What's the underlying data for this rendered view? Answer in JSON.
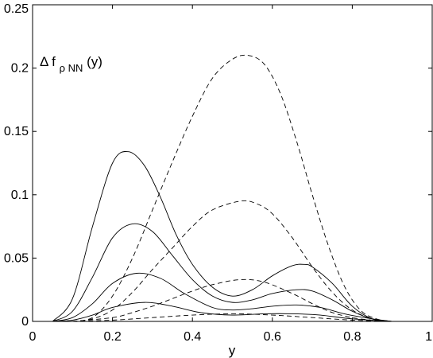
{
  "chart_data": {
    "type": "line",
    "xlabel": "y",
    "ylabel": "",
    "xlim": [
      0,
      1
    ],
    "ylim": [
      0,
      0.25
    ],
    "grid": false,
    "xticks": [
      "0",
      "0.2",
      "0.4",
      "0.6",
      "0.8",
      "1"
    ],
    "yticks": [
      "0",
      "0.05",
      "0.1",
      "0.15",
      "0.2",
      "0.25"
    ],
    "xtick_values": [
      0,
      0.2,
      0.4,
      0.6,
      0.8,
      1.0
    ],
    "ytick_values": [
      0,
      0.05,
      0.1,
      0.15,
      0.2,
      0.25
    ],
    "annotation": {
      "prefix": "Δ f",
      "subscript": "ρ NN",
      "suffix": "(y)"
    },
    "series": [
      {
        "style": "solid",
        "x": [
          0.05,
          0.1,
          0.15,
          0.2,
          0.24,
          0.28,
          0.32,
          0.36,
          0.4,
          0.45,
          0.5,
          0.55,
          0.6,
          0.65,
          0.68,
          0.7,
          0.75,
          0.8,
          0.85,
          0.9
        ],
        "y": [
          0.0,
          0.018,
          0.075,
          0.125,
          0.134,
          0.123,
          0.098,
          0.068,
          0.045,
          0.027,
          0.02,
          0.025,
          0.036,
          0.044,
          0.045,
          0.043,
          0.03,
          0.012,
          0.002,
          0.0
        ]
      },
      {
        "style": "solid",
        "x": [
          0.05,
          0.1,
          0.15,
          0.2,
          0.25,
          0.3,
          0.35,
          0.4,
          0.45,
          0.5,
          0.55,
          0.6,
          0.66,
          0.7,
          0.75,
          0.8,
          0.85,
          0.9
        ],
        "y": [
          0.0,
          0.008,
          0.035,
          0.066,
          0.077,
          0.071,
          0.052,
          0.033,
          0.02,
          0.015,
          0.017,
          0.022,
          0.025,
          0.024,
          0.017,
          0.008,
          0.002,
          0.0
        ]
      },
      {
        "style": "solid",
        "x": [
          0.05,
          0.1,
          0.15,
          0.2,
          0.26,
          0.32,
          0.38,
          0.45,
          0.5,
          0.55,
          0.6,
          0.66,
          0.72,
          0.78,
          0.85,
          0.9
        ],
        "y": [
          0.0,
          0.003,
          0.014,
          0.03,
          0.038,
          0.034,
          0.022,
          0.011,
          0.009,
          0.01,
          0.012,
          0.013,
          0.011,
          0.006,
          0.002,
          0.0
        ]
      },
      {
        "style": "solid",
        "x": [
          0.05,
          0.1,
          0.15,
          0.2,
          0.28,
          0.35,
          0.42,
          0.5,
          0.58,
          0.65,
          0.72,
          0.8,
          0.9
        ],
        "y": [
          0.0,
          0.001,
          0.005,
          0.011,
          0.015,
          0.012,
          0.007,
          0.005,
          0.006,
          0.006,
          0.005,
          0.002,
          0.0
        ]
      },
      {
        "style": "dashed",
        "x": [
          0.1,
          0.15,
          0.2,
          0.25,
          0.3,
          0.35,
          0.4,
          0.45,
          0.5,
          0.54,
          0.58,
          0.62,
          0.66,
          0.7,
          0.74,
          0.78,
          0.82,
          0.86,
          0.9
        ],
        "y": [
          0.0,
          0.003,
          0.02,
          0.05,
          0.088,
          0.126,
          0.162,
          0.192,
          0.207,
          0.21,
          0.203,
          0.18,
          0.143,
          0.1,
          0.06,
          0.028,
          0.009,
          0.002,
          0.0
        ]
      },
      {
        "style": "dashed",
        "x": [
          0.1,
          0.15,
          0.2,
          0.25,
          0.3,
          0.35,
          0.4,
          0.45,
          0.52,
          0.56,
          0.6,
          0.65,
          0.7,
          0.75,
          0.8,
          0.85,
          0.9
        ],
        "y": [
          0.0,
          0.002,
          0.009,
          0.023,
          0.041,
          0.058,
          0.075,
          0.088,
          0.095,
          0.093,
          0.085,
          0.066,
          0.043,
          0.023,
          0.009,
          0.002,
          0.0
        ]
      },
      {
        "style": "dashed",
        "x": [
          0.1,
          0.2,
          0.25,
          0.3,
          0.35,
          0.4,
          0.45,
          0.52,
          0.58,
          0.65,
          0.7,
          0.75,
          0.8,
          0.85,
          0.9
        ],
        "y": [
          0.0,
          0.003,
          0.007,
          0.012,
          0.018,
          0.024,
          0.029,
          0.033,
          0.031,
          0.022,
          0.014,
          0.007,
          0.003,
          0.001,
          0.0
        ]
      },
      {
        "style": "dashed",
        "x": [
          0.1,
          0.2,
          0.3,
          0.4,
          0.5,
          0.6,
          0.7,
          0.8,
          0.9
        ],
        "y": [
          0.0,
          0.001,
          0.003,
          0.005,
          0.006,
          0.005,
          0.003,
          0.001,
          0.0
        ]
      }
    ]
  }
}
